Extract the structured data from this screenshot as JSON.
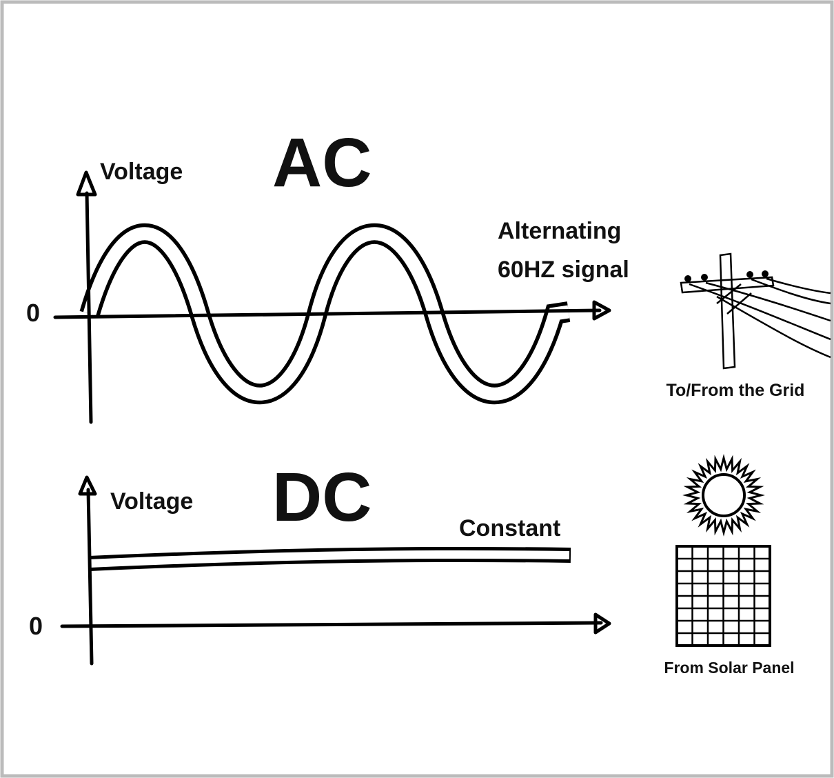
{
  "ac": {
    "title": "AC",
    "y_axis_label": "Voltage",
    "origin_label": "0",
    "caption": [
      "Alternating",
      "60HZ signal"
    ]
  },
  "grid_label": "To/From the Grid",
  "dc": {
    "title": "DC",
    "y_axis_label": "Voltage",
    "origin_label": "0",
    "caption": "Constant"
  },
  "solar_label": "From Solar Panel"
}
